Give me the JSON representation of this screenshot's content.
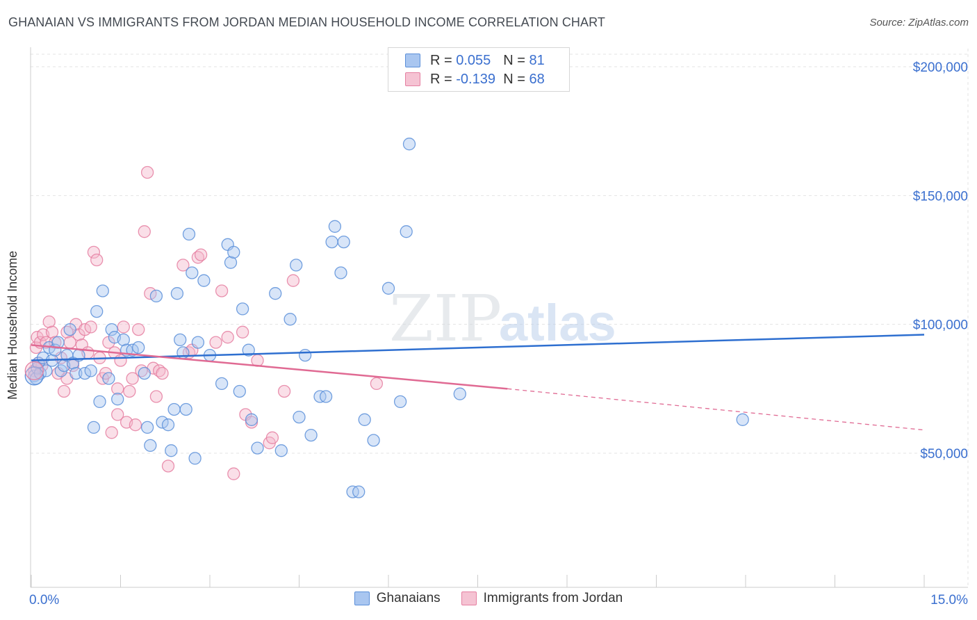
{
  "header": {
    "title": "GHANAIAN VS IMMIGRANTS FROM JORDAN MEDIAN HOUSEHOLD INCOME CORRELATION CHART",
    "source": "Source: ZipAtlas.com"
  },
  "legend_top": {
    "rows": [
      {
        "r_label": "R =",
        "r_value": "0.055",
        "n_label": "N =",
        "n_value": "81"
      },
      {
        "r_label": "R =",
        "r_value": "-0.139",
        "n_label": "N =",
        "n_value": "68"
      }
    ]
  },
  "watermark": {
    "zip": "ZIP",
    "atlas": "atlas"
  },
  "colors": {
    "ghanaian_fill": "#a9c6f0",
    "ghanaian_stroke": "#5b8fd9",
    "ghanaian_line": "#2e6fd0",
    "jordan_fill": "#f5b8cb",
    "jordan_stroke": "#e57fa1",
    "jordan_line": "#e06a93",
    "axis_text": "#3a6fcf",
    "grid": "#e3e3e3"
  },
  "chart_data": {
    "type": "scatter",
    "title": "GHANAIAN VS IMMIGRANTS FROM JORDAN MEDIAN HOUSEHOLD INCOME CORRELATION CHART",
    "xlabel": "",
    "ylabel": "Median Household Income",
    "xlim": [
      0,
      15
    ],
    "ylim": [
      0,
      210000
    ],
    "x_tick_labels": [
      "0.0%",
      "15.0%"
    ],
    "y_ticks": [
      {
        "value": 50000,
        "label": "$50,000"
      },
      {
        "value": 100000,
        "label": "$100,000"
      },
      {
        "value": 150000,
        "label": "$150,000"
      },
      {
        "value": 200000,
        "label": "$200,000"
      }
    ],
    "grid": true,
    "legend_position": "top-center",
    "series": [
      {
        "name": "Ghanaians",
        "r": 0.055,
        "n": 81,
        "trend": {
          "x": [
            0,
            15
          ],
          "y": [
            86000,
            96000
          ],
          "dashed_from": null
        },
        "points": [
          [
            0.05,
            80000
          ],
          [
            0.08,
            79000
          ],
          [
            0.1,
            83000
          ],
          [
            0.12,
            85000
          ],
          [
            0.15,
            81000
          ],
          [
            0.2,
            87000
          ],
          [
            0.25,
            82000
          ],
          [
            0.3,
            91000
          ],
          [
            0.35,
            86000
          ],
          [
            0.4,
            90000
          ],
          [
            0.45,
            93000
          ],
          [
            0.5,
            82000
          ],
          [
            0.55,
            84000
          ],
          [
            0.6,
            88000
          ],
          [
            0.65,
            98000
          ],
          [
            0.7,
            85000
          ],
          [
            0.75,
            81000
          ],
          [
            0.8,
            88000
          ],
          [
            0.9,
            81000
          ],
          [
            1.0,
            82000
          ],
          [
            1.05,
            60000
          ],
          [
            1.1,
            105000
          ],
          [
            1.15,
            70000
          ],
          [
            1.2,
            113000
          ],
          [
            1.3,
            79000
          ],
          [
            1.35,
            98000
          ],
          [
            1.4,
            95000
          ],
          [
            1.45,
            71000
          ],
          [
            1.55,
            94000
          ],
          [
            1.6,
            90000
          ],
          [
            1.7,
            90000
          ],
          [
            1.8,
            91000
          ],
          [
            1.9,
            81000
          ],
          [
            1.95,
            60000
          ],
          [
            2.0,
            53000
          ],
          [
            2.1,
            111000
          ],
          [
            2.2,
            62000
          ],
          [
            2.3,
            61000
          ],
          [
            2.35,
            51000
          ],
          [
            2.4,
            67000
          ],
          [
            2.45,
            112000
          ],
          [
            2.5,
            94000
          ],
          [
            2.55,
            89000
          ],
          [
            2.6,
            67000
          ],
          [
            2.65,
            135000
          ],
          [
            2.7,
            120000
          ],
          [
            2.75,
            48000
          ],
          [
            2.8,
            93000
          ],
          [
            2.9,
            117000
          ],
          [
            3.0,
            88000
          ],
          [
            3.2,
            77000
          ],
          [
            3.3,
            131000
          ],
          [
            3.35,
            124000
          ],
          [
            3.4,
            128000
          ],
          [
            3.5,
            74000
          ],
          [
            3.55,
            106000
          ],
          [
            3.65,
            90000
          ],
          [
            3.7,
            63000
          ],
          [
            3.8,
            52000
          ],
          [
            4.1,
            112000
          ],
          [
            4.2,
            51000
          ],
          [
            4.35,
            102000
          ],
          [
            4.45,
            123000
          ],
          [
            4.5,
            64000
          ],
          [
            4.6,
            88000
          ],
          [
            4.7,
            57000
          ],
          [
            4.85,
            72000
          ],
          [
            4.95,
            72000
          ],
          [
            5.05,
            132000
          ],
          [
            5.1,
            138000
          ],
          [
            5.2,
            120000
          ],
          [
            5.25,
            132000
          ],
          [
            5.4,
            35000
          ],
          [
            5.5,
            35000
          ],
          [
            5.6,
            63000
          ],
          [
            5.75,
            55000
          ],
          [
            6.0,
            114000
          ],
          [
            6.2,
            70000
          ],
          [
            6.3,
            136000
          ],
          [
            6.35,
            170000
          ],
          [
            7.2,
            73000
          ],
          [
            11.95,
            63000
          ]
        ]
      },
      {
        "name": "Immigrants from Jordan",
        "r": -0.139,
        "n": 68,
        "trend": {
          "x": [
            0,
            8
          ],
          "y": [
            92000,
            75000
          ],
          "dashed_to": [
            15,
            59000
          ]
        },
        "points": [
          [
            0.05,
            82000
          ],
          [
            0.08,
            91000
          ],
          [
            0.1,
            95000
          ],
          [
            0.12,
            85000
          ],
          [
            0.15,
            93000
          ],
          [
            0.2,
            96000
          ],
          [
            0.25,
            93000
          ],
          [
            0.3,
            101000
          ],
          [
            0.35,
            97000
          ],
          [
            0.4,
            93000
          ],
          [
            0.45,
            81000
          ],
          [
            0.5,
            87000
          ],
          [
            0.55,
            74000
          ],
          [
            0.6,
            97000
          ],
          [
            0.65,
            93000
          ],
          [
            0.7,
            84000
          ],
          [
            0.75,
            100000
          ],
          [
            0.8,
            96000
          ],
          [
            0.85,
            92000
          ],
          [
            0.9,
            98000
          ],
          [
            0.95,
            89000
          ],
          [
            1.0,
            99000
          ],
          [
            1.05,
            128000
          ],
          [
            1.1,
            125000
          ],
          [
            1.15,
            87000
          ],
          [
            1.2,
            79000
          ],
          [
            1.25,
            81000
          ],
          [
            1.3,
            93000
          ],
          [
            1.35,
            58000
          ],
          [
            1.4,
            89000
          ],
          [
            1.45,
            65000
          ],
          [
            1.5,
            86000
          ],
          [
            1.55,
            99000
          ],
          [
            1.6,
            62000
          ],
          [
            1.65,
            74000
          ],
          [
            1.7,
            79000
          ],
          [
            1.75,
            61000
          ],
          [
            1.8,
            98000
          ],
          [
            1.85,
            82000
          ],
          [
            1.9,
            136000
          ],
          [
            1.95,
            159000
          ],
          [
            2.0,
            112000
          ],
          [
            2.05,
            83000
          ],
          [
            2.1,
            72000
          ],
          [
            2.15,
            82000
          ],
          [
            2.2,
            81000
          ],
          [
            2.3,
            45000
          ],
          [
            2.55,
            123000
          ],
          [
            2.65,
            89000
          ],
          [
            2.7,
            90000
          ],
          [
            2.8,
            126000
          ],
          [
            2.85,
            127000
          ],
          [
            3.1,
            93000
          ],
          [
            3.2,
            113000
          ],
          [
            3.3,
            95000
          ],
          [
            3.4,
            42000
          ],
          [
            3.55,
            97000
          ],
          [
            3.6,
            65000
          ],
          [
            3.7,
            62000
          ],
          [
            3.8,
            86000
          ],
          [
            4.0,
            54000
          ],
          [
            4.05,
            56000
          ],
          [
            4.25,
            74000
          ],
          [
            4.4,
            117000
          ],
          [
            5.8,
            77000
          ],
          [
            0.18,
            84000
          ],
          [
            0.6,
            79000
          ],
          [
            1.45,
            75000
          ]
        ]
      }
    ]
  },
  "bottom_legend": {
    "items": [
      {
        "label": "Ghanaians"
      },
      {
        "label": "Immigrants from Jordan"
      }
    ]
  }
}
